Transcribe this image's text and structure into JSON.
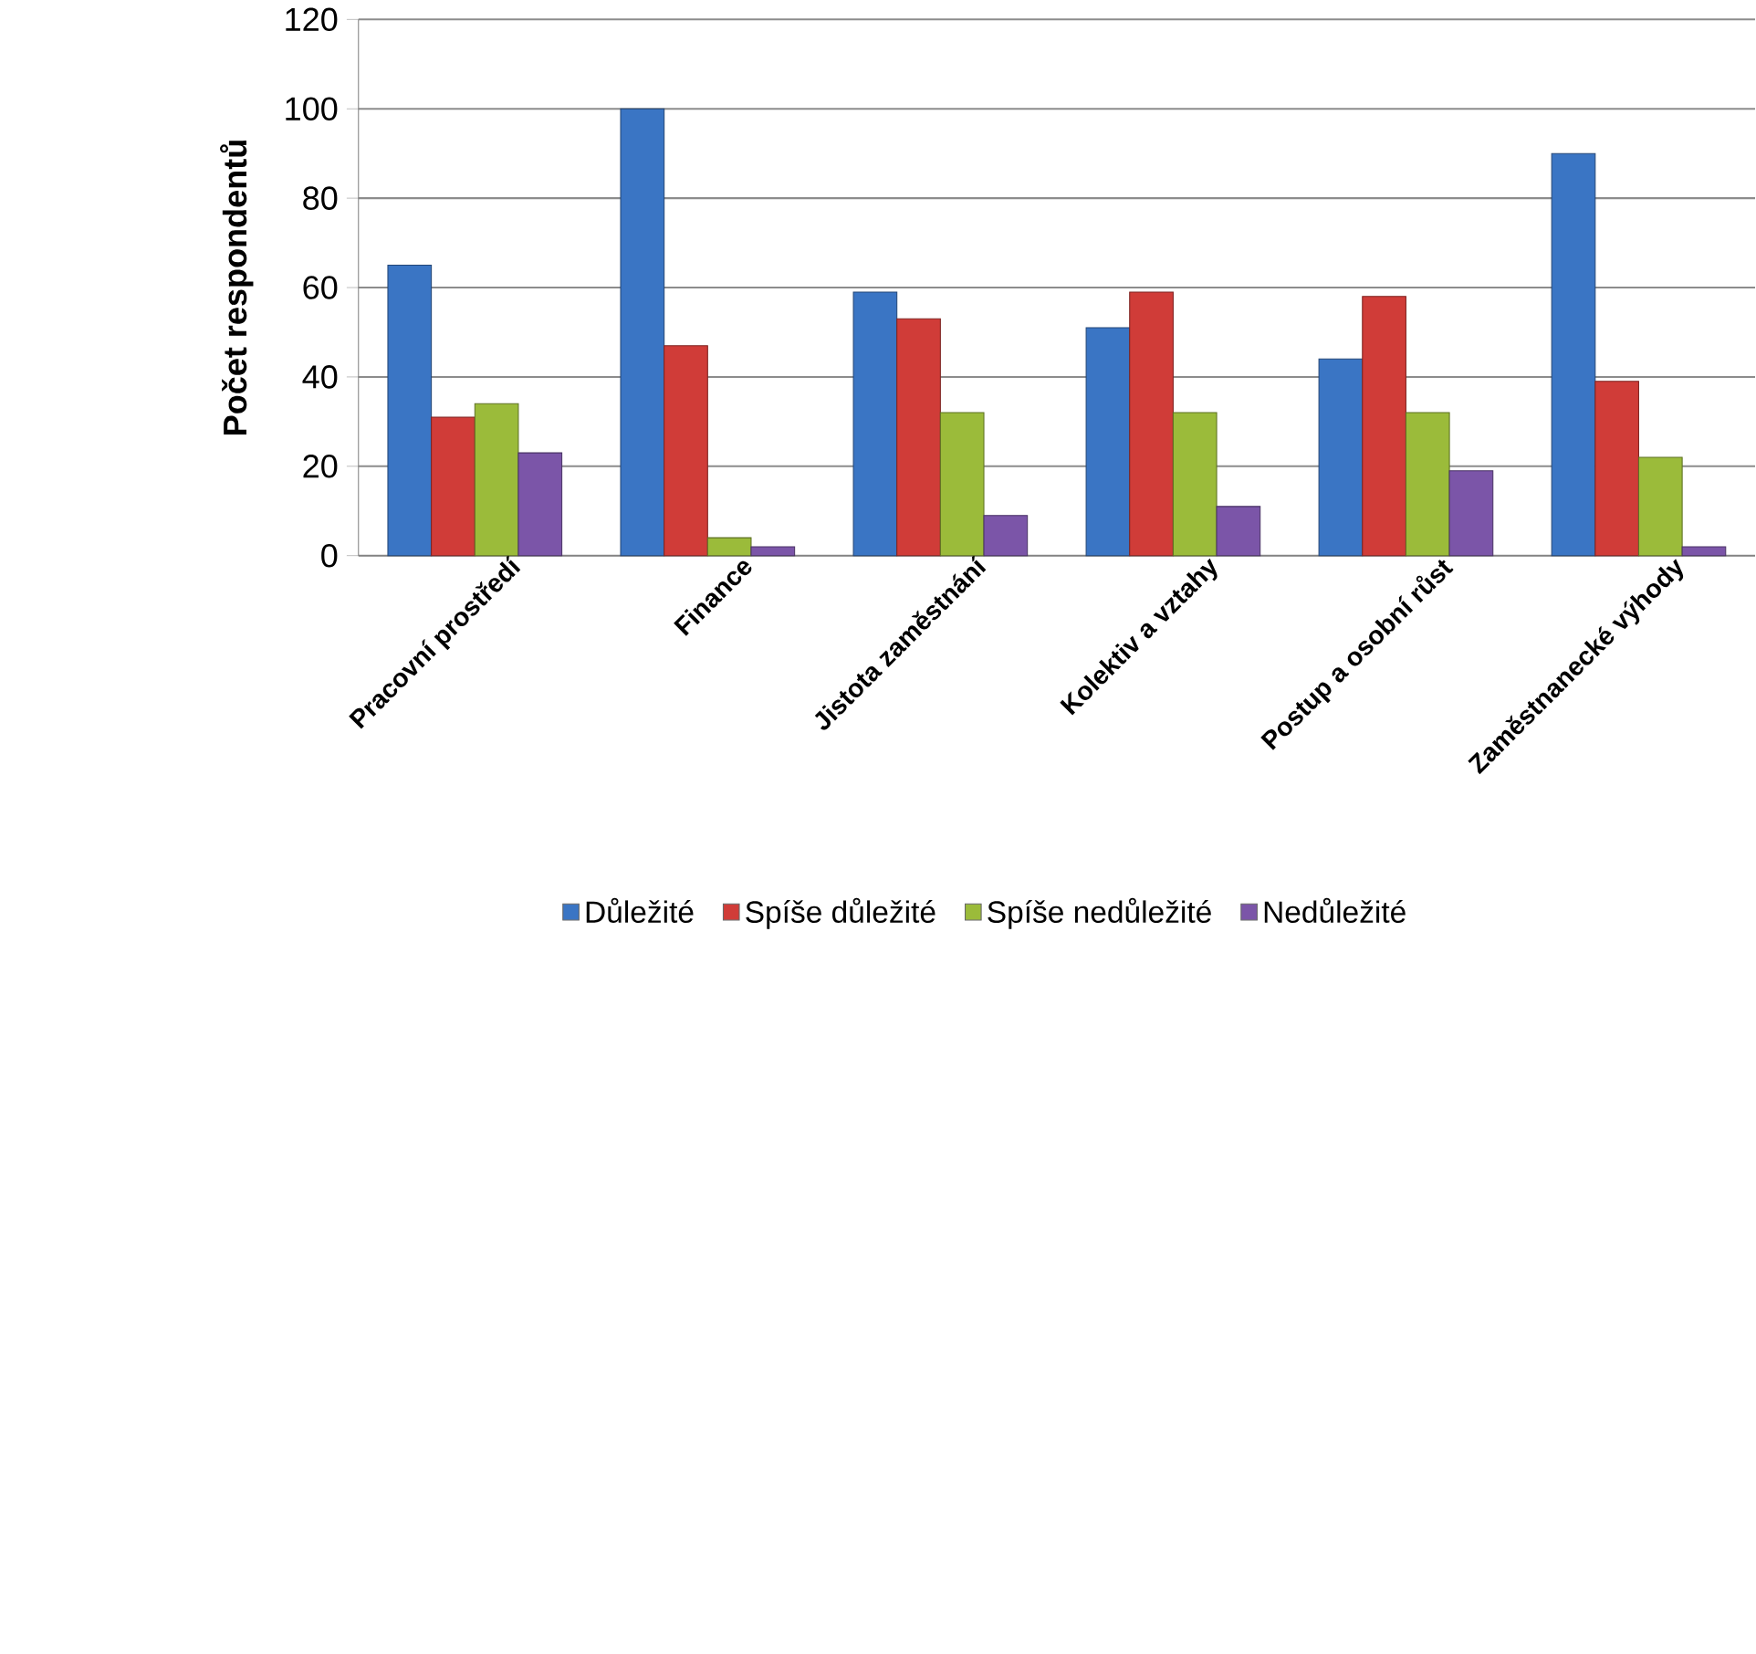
{
  "chart_data": {
    "type": "bar",
    "ylabel": "Počet respondentů",
    "categories": [
      "Pracovní prostředí",
      "Finance",
      "Jistota zaměstnání",
      "Kolektiv a vztahy",
      "Postup a osobní růst",
      "Zaměstnanecké výhody"
    ],
    "series": [
      {
        "name": "Důležité",
        "color": "#3a75c4",
        "values": [
          65,
          100,
          59,
          51,
          44,
          90
        ]
      },
      {
        "name": "Spíše důležité",
        "color": "#d03c38",
        "values": [
          31,
          47,
          53,
          59,
          58,
          39
        ]
      },
      {
        "name": "Spíše nedůležité",
        "color": "#9bbb3a",
        "values": [
          34,
          4,
          32,
          32,
          32,
          22
        ]
      },
      {
        "name": "Nedůležité",
        "color": "#7b55a8",
        "values": [
          23,
          2,
          9,
          11,
          19,
          2
        ]
      }
    ],
    "ylim": [
      0,
      120
    ],
    "yticks": [
      0,
      20,
      40,
      60,
      80,
      100,
      120
    ],
    "grid": "y",
    "legend": "bottom"
  }
}
